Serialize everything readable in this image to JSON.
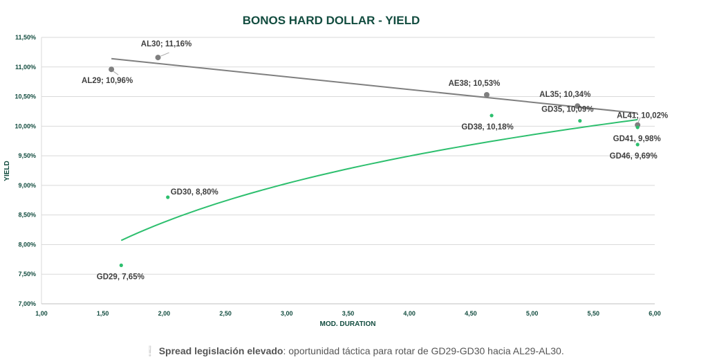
{
  "chart_data": {
    "type": "scatter",
    "title": "BONOS HARD DOLLAR - YIELD",
    "xlabel": "MOD. DURATION",
    "ylabel": "YIELD",
    "xlim": [
      1.0,
      6.0
    ],
    "ylim": [
      7.0,
      11.5
    ],
    "x_ticks": [
      1.0,
      1.5,
      2.0,
      2.5,
      3.0,
      3.5,
      4.0,
      4.5,
      5.0,
      5.5,
      6.0
    ],
    "x_tick_labels": [
      "1,00",
      "1,50",
      "2,00",
      "2,50",
      "3,00",
      "3,50",
      "4,00",
      "4,50",
      "5,00",
      "5,50",
      "6,00"
    ],
    "y_ticks": [
      7.0,
      7.5,
      8.0,
      8.5,
      9.0,
      9.5,
      10.0,
      10.5,
      11.0,
      11.5
    ],
    "y_tick_labels": [
      "7,00%",
      "7,50%",
      "8,00%",
      "8,50%",
      "9,00%",
      "9,50%",
      "10,00%",
      "10,50%",
      "11,00%",
      "11,50%"
    ],
    "grid": "horizontal",
    "series": [
      {
        "name": "AL",
        "color": "#7f7f7f",
        "points": [
          {
            "label": "AL29; 10,96%",
            "x": 1.57,
            "y": 10.96,
            "anchor": "below-left"
          },
          {
            "label": "AL30; 11,16%",
            "x": 1.95,
            "y": 11.16,
            "anchor": "above"
          },
          {
            "label": "AE38; 10,53%",
            "x": 4.63,
            "y": 10.53,
            "anchor": "above-left"
          },
          {
            "label": "AL35; 10,34%",
            "x": 5.37,
            "y": 10.34,
            "anchor": "above-left"
          },
          {
            "label": "AL41; 10,02%",
            "x": 5.86,
            "y": 10.02,
            "anchor": "above-right"
          }
        ],
        "trendline": {
          "type": "linear",
          "from": [
            1.57,
            11.14
          ],
          "to": [
            5.86,
            10.22
          ]
        }
      },
      {
        "name": "GD",
        "color": "#2dbf6e",
        "points": [
          {
            "label": "GD29, 7,65%",
            "x": 1.65,
            "y": 7.65,
            "anchor": "below"
          },
          {
            "label": "GD30, 8,80%",
            "x": 2.03,
            "y": 8.8,
            "anchor": "right"
          },
          {
            "label": "GD38, 10,18%",
            "x": 4.67,
            "y": 10.18,
            "anchor": "below-left"
          },
          {
            "label": "GD35, 10,09%",
            "x": 5.39,
            "y": 10.09,
            "anchor": "above-left"
          },
          {
            "label": "GD41, 9,98%",
            "x": 5.86,
            "y": 9.98,
            "anchor": "below"
          },
          {
            "label": "GD46, 9,69%",
            "x": 5.86,
            "y": 9.69,
            "anchor": "below-left"
          }
        ],
        "trendline": {
          "type": "logarithmic",
          "from": [
            1.65,
            8.07
          ],
          "to": [
            5.86,
            10.11
          ]
        }
      }
    ]
  },
  "caption": {
    "bold": "Spread legislación elevado",
    "rest": ": oportunidad táctica para rotar de GD29-GD30 hacia AL29-AL30."
  },
  "colors": {
    "title": "#124c3f",
    "axis_label": "#124c3f",
    "grid": "#d9d9d9",
    "data_label": "#404040"
  }
}
